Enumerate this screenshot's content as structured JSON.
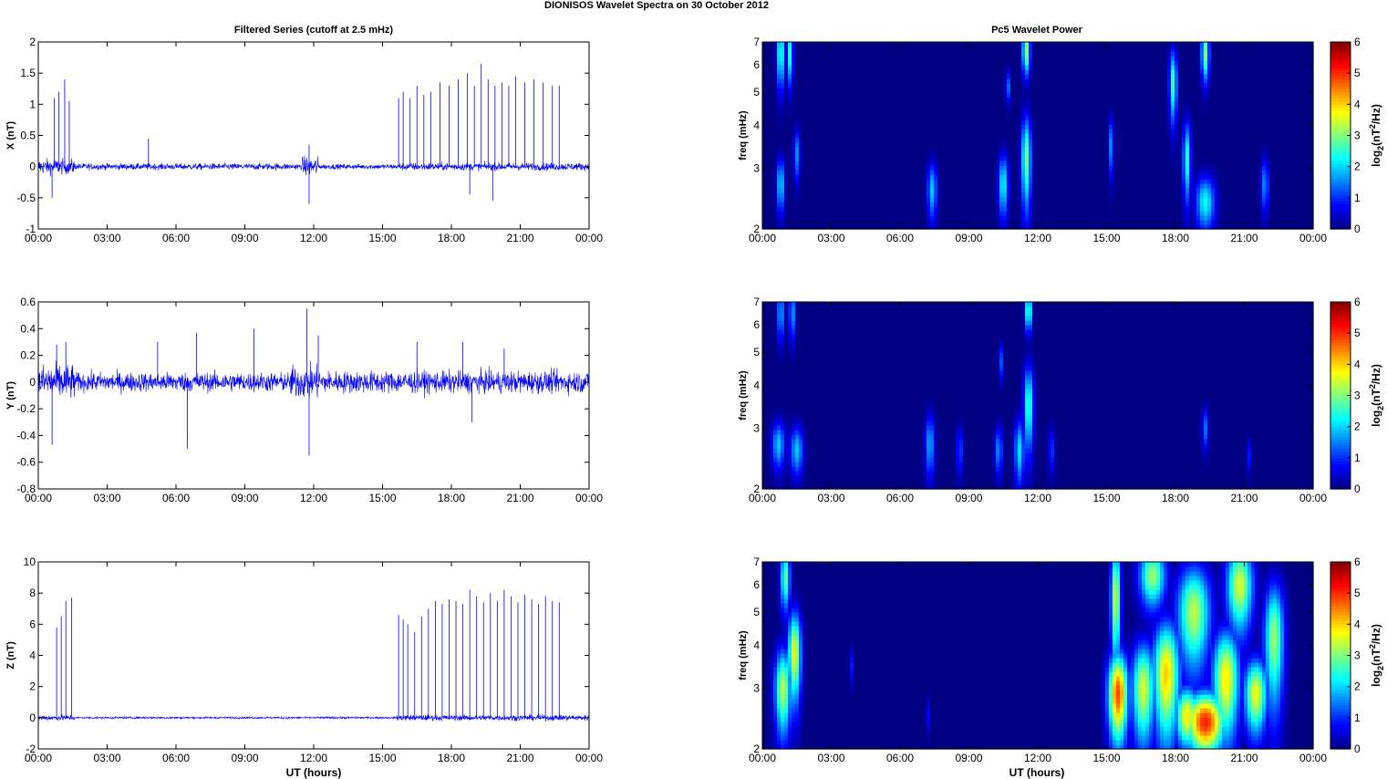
{
  "suptitle": "DIONISOS Wavelet Spectra on 30 October   2012",
  "titles": {
    "left": "Filtered Series (cutoff at 2.5 mHz)",
    "right": "Pc5 Wavelet Power"
  },
  "xlabel": "UT (hours)",
  "time_ticks": [
    "00:00",
    "03:00",
    "06:00",
    "09:00",
    "12:00",
    "15:00",
    "18:00",
    "21:00",
    "00:00"
  ],
  "colors": {
    "trace": "#0000ff",
    "axes": "#000000",
    "background": "#ffffff"
  },
  "chart_data": [
    {
      "type": "line",
      "component": "X",
      "ylabel": "X (nT)",
      "xlim": [
        0,
        24
      ],
      "ylim": [
        -1,
        2
      ],
      "yticks": [
        "-1",
        "-0.5",
        "0",
        "0.5",
        "1",
        "1.5",
        "2"
      ],
      "noise_segments": [
        {
          "x": [
            0,
            1.6
          ],
          "amp": 0.12
        },
        {
          "x": [
            1.6,
            11.5
          ],
          "amp": 0.05
        },
        {
          "x": [
            11.5,
            12.2
          ],
          "amp": 0.15
        },
        {
          "x": [
            12.2,
            15.7
          ],
          "amp": 0.04
        },
        {
          "x": [
            15.7,
            24
          ],
          "amp": 0.06
        }
      ],
      "spikes": [
        [
          0.7,
          1.1
        ],
        [
          0.9,
          1.2
        ],
        [
          1.15,
          1.4
        ],
        [
          1.35,
          1.05
        ],
        [
          4.8,
          0.45
        ],
        [
          11.8,
          0.35
        ],
        [
          15.7,
          1.1
        ],
        [
          15.9,
          1.2
        ],
        [
          16.2,
          1.1
        ],
        [
          16.5,
          1.3
        ],
        [
          16.8,
          1.15
        ],
        [
          17.1,
          1.2
        ],
        [
          17.5,
          1.35
        ],
        [
          17.9,
          1.3
        ],
        [
          18.3,
          1.4
        ],
        [
          18.7,
          1.5
        ],
        [
          19.0,
          1.3
        ],
        [
          19.3,
          1.65
        ],
        [
          19.6,
          1.4
        ],
        [
          19.9,
          1.3
        ],
        [
          20.2,
          1.35
        ],
        [
          20.5,
          1.3
        ],
        [
          20.8,
          1.45
        ],
        [
          21.2,
          1.35
        ],
        [
          21.6,
          1.4
        ],
        [
          22.0,
          1.35
        ],
        [
          22.4,
          1.3
        ],
        [
          22.7,
          1.3
        ]
      ],
      "dips": [
        [
          0.6,
          -0.5
        ],
        [
          11.8,
          -0.6
        ],
        [
          18.8,
          -0.45
        ],
        [
          19.8,
          -0.55
        ]
      ]
    },
    {
      "type": "line",
      "component": "Y",
      "ylabel": "Y (nT)",
      "xlim": [
        0,
        24
      ],
      "ylim": [
        -0.8,
        0.6
      ],
      "yticks": [
        "-0.8",
        "-0.6",
        "-0.4",
        "-0.2",
        "0",
        "0.2",
        "0.4",
        "0.6"
      ],
      "noise_segments": [
        {
          "x": [
            0,
            1.6
          ],
          "amp": 0.13
        },
        {
          "x": [
            1.6,
            11.0
          ],
          "amp": 0.07
        },
        {
          "x": [
            11.0,
            12.3
          ],
          "amp": 0.12
        },
        {
          "x": [
            12.3,
            24
          ],
          "amp": 0.08
        }
      ],
      "spikes": [
        [
          0.8,
          0.28
        ],
        [
          1.2,
          0.3
        ],
        [
          5.2,
          0.3
        ],
        [
          6.9,
          0.37
        ],
        [
          9.4,
          0.4
        ],
        [
          11.7,
          0.55
        ],
        [
          12.2,
          0.35
        ],
        [
          16.5,
          0.3
        ],
        [
          18.5,
          0.3
        ],
        [
          20.3,
          0.25
        ]
      ],
      "dips": [
        [
          0.6,
          -0.47
        ],
        [
          6.5,
          -0.5
        ],
        [
          11.8,
          -0.55
        ],
        [
          18.9,
          -0.3
        ]
      ]
    },
    {
      "type": "line",
      "component": "Z",
      "ylabel": "Z (nT)",
      "xlim": [
        0,
        24
      ],
      "ylim": [
        -2,
        10
      ],
      "yticks": [
        "-2",
        "0",
        "2",
        "4",
        "6",
        "8",
        "10"
      ],
      "noise_segments": [
        {
          "x": [
            0,
            1.6
          ],
          "amp": 0.18
        },
        {
          "x": [
            1.6,
            15.6
          ],
          "amp": 0.06
        },
        {
          "x": [
            15.6,
            24
          ],
          "amp": 0.18
        }
      ],
      "spikes": [
        [
          0.8,
          5.8
        ],
        [
          1.0,
          6.5
        ],
        [
          1.2,
          7.5
        ],
        [
          1.45,
          7.7
        ],
        [
          15.7,
          6.6
        ],
        [
          15.9,
          6.3
        ],
        [
          16.1,
          6.0
        ],
        [
          16.4,
          5.5
        ],
        [
          16.7,
          6.5
        ],
        [
          17.0,
          7.0
        ],
        [
          17.3,
          7.5
        ],
        [
          17.6,
          7.3
        ],
        [
          17.9,
          7.6
        ],
        [
          18.2,
          7.5
        ],
        [
          18.5,
          7.3
        ],
        [
          18.8,
          8.2
        ],
        [
          19.1,
          7.8
        ],
        [
          19.4,
          7.4
        ],
        [
          19.7,
          8.0
        ],
        [
          20.0,
          7.5
        ],
        [
          20.3,
          8.2
        ],
        [
          20.6,
          7.8
        ],
        [
          20.9,
          7.4
        ],
        [
          21.2,
          7.9
        ],
        [
          21.5,
          7.6
        ],
        [
          21.8,
          7.3
        ],
        [
          22.1,
          7.8
        ],
        [
          22.4,
          7.5
        ],
        [
          22.7,
          7.4
        ]
      ],
      "dips": []
    },
    {
      "type": "heatmap",
      "component": "X",
      "ylabel": "freq (mHz)",
      "xlim": [
        0,
        24
      ],
      "ylim": [
        2,
        7
      ],
      "yscale": "log",
      "yticks": [
        "2",
        "3",
        "4",
        "5",
        "6",
        "7"
      ],
      "colorbar_label": "log2(nT2/Hz)",
      "clim": [
        0,
        6
      ],
      "colorbar_ticks": [
        "0",
        "1",
        "2",
        "3",
        "4",
        "5",
        "6"
      ],
      "blobs": [
        {
          "t": 0.8,
          "f": 2.7,
          "dt": 0.12,
          "df": 0.35,
          "p": 2.4
        },
        {
          "t": 0.8,
          "f": 6.5,
          "dt": 0.12,
          "df": 1.0,
          "p": 3.0
        },
        {
          "t": 1.2,
          "f": 6.5,
          "dt": 0.1,
          "df": 0.9,
          "p": 2.8
        },
        {
          "t": 1.5,
          "f": 3.3,
          "dt": 0.1,
          "df": 0.4,
          "p": 1.8
        },
        {
          "t": 7.4,
          "f": 2.6,
          "dt": 0.15,
          "df": 0.35,
          "p": 2.2
        },
        {
          "t": 10.5,
          "f": 2.7,
          "dt": 0.15,
          "df": 0.4,
          "p": 2.6
        },
        {
          "t": 10.7,
          "f": 5.2,
          "dt": 0.08,
          "df": 0.4,
          "p": 1.6
        },
        {
          "t": 11.5,
          "f": 3.2,
          "dt": 0.15,
          "df": 0.7,
          "p": 3.3
        },
        {
          "t": 11.5,
          "f": 6.6,
          "dt": 0.12,
          "df": 0.7,
          "p": 3.6
        },
        {
          "t": 15.2,
          "f": 3.5,
          "dt": 0.08,
          "df": 0.5,
          "p": 1.8
        },
        {
          "t": 17.9,
          "f": 5.3,
          "dt": 0.12,
          "df": 0.9,
          "p": 3.0
        },
        {
          "t": 18.5,
          "f": 3.2,
          "dt": 0.12,
          "df": 0.6,
          "p": 2.8
        },
        {
          "t": 19.3,
          "f": 2.4,
          "dt": 0.3,
          "df": 0.3,
          "p": 2.6
        },
        {
          "t": 19.3,
          "f": 6.5,
          "dt": 0.12,
          "df": 0.8,
          "p": 3.4
        },
        {
          "t": 21.9,
          "f": 2.7,
          "dt": 0.12,
          "df": 0.35,
          "p": 1.8
        }
      ]
    },
    {
      "type": "heatmap",
      "component": "Y",
      "ylabel": "freq (mHz)",
      "xlim": [
        0,
        24
      ],
      "ylim": [
        2,
        7
      ],
      "yscale": "log",
      "yticks": [
        "2",
        "3",
        "4",
        "5",
        "6",
        "7"
      ],
      "colorbar_label": "log2(nT2/Hz)",
      "clim": [
        0,
        6
      ],
      "colorbar_ticks": [
        "0",
        "1",
        "2",
        "3",
        "4",
        "5",
        "6"
      ],
      "blobs": [
        {
          "t": 0.7,
          "f": 2.7,
          "dt": 0.2,
          "df": 0.3,
          "p": 2.2
        },
        {
          "t": 0.8,
          "f": 6.5,
          "dt": 0.1,
          "df": 0.8,
          "p": 2.2
        },
        {
          "t": 1.3,
          "f": 6.5,
          "dt": 0.1,
          "df": 0.8,
          "p": 2.0
        },
        {
          "t": 1.5,
          "f": 2.6,
          "dt": 0.2,
          "df": 0.3,
          "p": 2.2
        },
        {
          "t": 7.3,
          "f": 2.7,
          "dt": 0.15,
          "df": 0.4,
          "p": 2.0
        },
        {
          "t": 8.6,
          "f": 2.6,
          "dt": 0.1,
          "df": 0.3,
          "p": 1.4
        },
        {
          "t": 10.3,
          "f": 2.6,
          "dt": 0.12,
          "df": 0.3,
          "p": 1.8
        },
        {
          "t": 10.4,
          "f": 4.7,
          "dt": 0.08,
          "df": 0.4,
          "p": 1.4
        },
        {
          "t": 11.2,
          "f": 2.6,
          "dt": 0.15,
          "df": 0.4,
          "p": 2.4
        },
        {
          "t": 11.6,
          "f": 3.5,
          "dt": 0.15,
          "df": 0.7,
          "p": 3.0
        },
        {
          "t": 11.6,
          "f": 6.6,
          "dt": 0.1,
          "df": 0.6,
          "p": 3.4
        },
        {
          "t": 12.6,
          "f": 2.6,
          "dt": 0.1,
          "df": 0.3,
          "p": 1.2
        },
        {
          "t": 19.3,
          "f": 3.0,
          "dt": 0.1,
          "df": 0.3,
          "p": 1.6
        },
        {
          "t": 21.2,
          "f": 2.5,
          "dt": 0.08,
          "df": 0.2,
          "p": 1.0
        }
      ]
    },
    {
      "type": "heatmap",
      "component": "Z",
      "ylabel": "freq (mHz)",
      "xlim": [
        0,
        24
      ],
      "ylim": [
        2,
        7
      ],
      "yscale": "log",
      "yticks": [
        "2",
        "3",
        "4",
        "5",
        "6",
        "7"
      ],
      "colorbar_label": "log2(nT2/Hz)",
      "clim": [
        0,
        6
      ],
      "colorbar_ticks": [
        "0",
        "1",
        "2",
        "3",
        "4",
        "5",
        "6"
      ],
      "blobs": [
        {
          "t": 0.9,
          "f": 3.0,
          "dt": 0.25,
          "df": 0.6,
          "p": 3.8
        },
        {
          "t": 1.4,
          "f": 3.8,
          "dt": 0.2,
          "df": 0.8,
          "p": 4.2
        },
        {
          "t": 1.0,
          "f": 6.3,
          "dt": 0.15,
          "df": 0.9,
          "p": 3.2
        },
        {
          "t": 3.9,
          "f": 3.5,
          "dt": 0.06,
          "df": 0.3,
          "p": 1.0
        },
        {
          "t": 7.2,
          "f": 2.5,
          "dt": 0.06,
          "df": 0.2,
          "p": 1.0
        },
        {
          "t": 15.5,
          "f": 2.9,
          "dt": 0.3,
          "df": 0.6,
          "p": 5.5
        },
        {
          "t": 15.4,
          "f": 5.5,
          "dt": 0.15,
          "df": 1.5,
          "p": 4.0
        },
        {
          "t": 16.6,
          "f": 3.0,
          "dt": 0.35,
          "df": 0.7,
          "p": 4.0
        },
        {
          "t": 17.6,
          "f": 3.3,
          "dt": 0.4,
          "df": 0.9,
          "p": 4.6
        },
        {
          "t": 18.5,
          "f": 2.5,
          "dt": 0.35,
          "df": 0.35,
          "p": 4.4
        },
        {
          "t": 19.3,
          "f": 2.4,
          "dt": 0.6,
          "df": 0.35,
          "p": 5.8
        },
        {
          "t": 18.8,
          "f": 5.0,
          "dt": 0.5,
          "df": 1.2,
          "p": 3.8
        },
        {
          "t": 20.2,
          "f": 3.2,
          "dt": 0.4,
          "df": 0.8,
          "p": 4.4
        },
        {
          "t": 20.8,
          "f": 6.0,
          "dt": 0.4,
          "df": 1.2,
          "p": 4.0
        },
        {
          "t": 21.5,
          "f": 2.9,
          "dt": 0.35,
          "df": 0.5,
          "p": 4.2
        },
        {
          "t": 22.3,
          "f": 4.2,
          "dt": 0.3,
          "df": 1.2,
          "p": 3.6
        },
        {
          "t": 17.0,
          "f": 6.4,
          "dt": 0.4,
          "df": 0.9,
          "p": 3.6
        }
      ]
    }
  ]
}
